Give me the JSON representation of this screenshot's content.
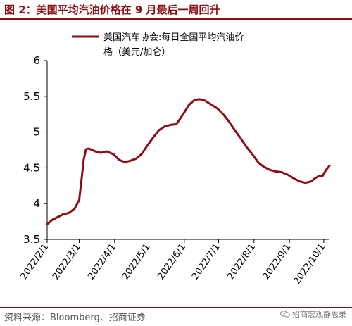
{
  "figure": {
    "title": "图 2：美国平均汽油价格在 9 月最后一周回升",
    "source": "资料来源：Bloomberg、招商证券",
    "watermark": "招商宏观静思录"
  },
  "colors": {
    "brand": "#8b0f12",
    "line": "#8b0f12"
  },
  "chart_data": {
    "type": "line",
    "title": "",
    "xlabel": "",
    "ylabel": "",
    "ylim": [
      3.5,
      6
    ],
    "yticks": [
      "3.5",
      "4",
      "4.5",
      "5",
      "5.5",
      "6"
    ],
    "xticks": [
      "2022/2/1",
      "2022/3/1",
      "2022/4/1",
      "2022/5/1",
      "2022/6/1",
      "2022/7/1",
      "2022/8/1",
      "2022/9/1",
      "2022/10/1"
    ],
    "grid": false,
    "legend_position": "top",
    "series": [
      {
        "name": "美国汽车协会:每日全国平均汽油价格（美元/加仑）",
        "x": [
          "2022-02-01",
          "2022-02-05",
          "2022-02-10",
          "2022-02-15",
          "2022-02-20",
          "2022-02-25",
          "2022-03-01",
          "2022-03-03",
          "2022-03-05",
          "2022-03-07",
          "2022-03-09",
          "2022-03-11",
          "2022-03-15",
          "2022-03-20",
          "2022-03-25",
          "2022-03-31",
          "2022-04-05",
          "2022-04-10",
          "2022-04-15",
          "2022-04-20",
          "2022-04-25",
          "2022-04-30",
          "2022-05-05",
          "2022-05-10",
          "2022-05-15",
          "2022-05-20",
          "2022-05-25",
          "2022-05-31",
          "2022-06-05",
          "2022-06-10",
          "2022-06-14",
          "2022-06-18",
          "2022-06-22",
          "2022-06-26",
          "2022-06-30",
          "2022-07-05",
          "2022-07-10",
          "2022-07-15",
          "2022-07-20",
          "2022-07-25",
          "2022-07-31",
          "2022-08-05",
          "2022-08-10",
          "2022-08-15",
          "2022-08-20",
          "2022-08-25",
          "2022-08-31",
          "2022-09-05",
          "2022-09-10",
          "2022-09-15",
          "2022-09-20",
          "2022-09-23",
          "2022-09-26",
          "2022-09-30",
          "2022-10-03",
          "2022-10-06"
        ],
        "values": [
          3.71,
          3.77,
          3.81,
          3.85,
          3.87,
          3.93,
          4.05,
          4.33,
          4.62,
          4.76,
          4.77,
          4.76,
          4.73,
          4.71,
          4.73,
          4.69,
          4.61,
          4.58,
          4.6,
          4.63,
          4.7,
          4.82,
          4.93,
          5.03,
          5.08,
          5.1,
          5.11,
          5.25,
          5.38,
          5.45,
          5.46,
          5.45,
          5.41,
          5.37,
          5.33,
          5.25,
          5.15,
          5.03,
          4.92,
          4.8,
          4.68,
          4.57,
          4.51,
          4.47,
          4.45,
          4.44,
          4.4,
          4.35,
          4.31,
          4.29,
          4.31,
          4.35,
          4.38,
          4.39,
          4.47,
          4.53
        ]
      }
    ]
  }
}
